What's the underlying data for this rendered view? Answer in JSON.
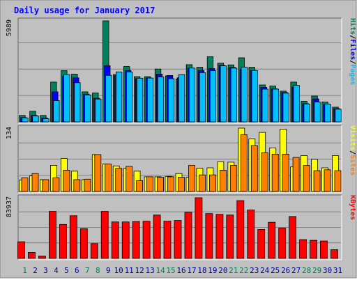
{
  "chart_data": {
    "type": "bar",
    "title": "Daily usage for January 2017",
    "days": [
      "1",
      "2",
      "3",
      "4",
      "5",
      "6",
      "7",
      "8",
      "9",
      "10",
      "11",
      "12",
      "13",
      "14",
      "15",
      "16",
      "17",
      "18",
      "19",
      "20",
      "21",
      "22",
      "23",
      "24",
      "25",
      "26",
      "27",
      "28",
      "29",
      "30",
      "31"
    ],
    "weekend_days": [
      "1",
      "7",
      "8",
      "14",
      "15",
      "21",
      "22",
      "28",
      "29"
    ],
    "colors": {
      "hits": "#00805c",
      "files": "#0000ff",
      "pages": "#00c0ff",
      "visits": "#ffff00",
      "sites": "#ff8000",
      "kbytes": "#ff0000",
      "weekday_label": "#0000a0",
      "weekend_label": "#00805c",
      "title": "#0000ff",
      "plot_bg": "#c0c0c0",
      "frame_bg": "#c0c0c0"
    },
    "panels": [
      {
        "name": "hits-files-pages",
        "ymax_label": "5989",
        "ymax": 5989,
        "legend": [
          {
            "text": "Pages",
            "color_key": "pages"
          },
          {
            "text": "/",
            "color_key": "sep"
          },
          {
            "text": "Files",
            "color_key": "files"
          },
          {
            "text": "/",
            "color_key": "sep"
          },
          {
            "text": "Hits",
            "color_key": "hits"
          }
        ],
        "series": [
          {
            "name": "Hits",
            "color_key": "hits",
            "values": [
              380,
              630,
              380,
              2360,
              3040,
              2830,
              1780,
              1720,
              5989,
              2800,
              3280,
              2680,
              2680,
              3130,
              2720,
              2550,
              3390,
              3240,
              3860,
              3480,
              3380,
              3800,
              3240,
              2190,
              2130,
              1820,
              2360,
              1220,
              1530,
              1180,
              870
            ]
          },
          {
            "name": "Files",
            "color_key": "files",
            "values": [
              250,
              380,
              230,
              1780,
              2720,
              2610,
              1640,
              1400,
              3330,
              2790,
              3050,
              2560,
              2600,
              2830,
              2750,
              2620,
              3190,
              3050,
              3160,
              3360,
              3230,
              3100,
              3050,
              2050,
              1960,
              1740,
              2060,
              1080,
              1360,
              1040,
              780
            ]
          },
          {
            "name": "Pages",
            "color_key": "pages",
            "values": [
              230,
              350,
              190,
              1260,
              2810,
              2320,
              1600,
              1350,
              2760,
              2960,
              2960,
              2590,
              2600,
              2670,
              2560,
              2810,
              3190,
              2920,
              3030,
              3330,
              3190,
              3250,
              3040,
              1940,
              1940,
              1700,
              2160,
              1060,
              1180,
              1050,
              750
            ]
          }
        ]
      },
      {
        "name": "visits-sites",
        "ymax_label": "134",
        "ymax": 134,
        "legend": [
          {
            "text": "Sites",
            "color_key": "sites"
          },
          {
            "text": "/",
            "color_key": "sep"
          },
          {
            "text": "Visits",
            "color_key": "visits"
          }
        ],
        "series": [
          {
            "name": "Visits",
            "color_key": "visits",
            "values": [
              24,
              33,
              25,
              55,
              70,
              43,
              25,
              78,
              58,
              54,
              49,
              43,
              31,
              31,
              32,
              38,
              30,
              49,
              50,
              63,
              62,
              134,
              111,
              125,
              92,
              132,
              52,
              76,
              68,
              50,
              76
            ]
          },
          {
            "name": "Sites",
            "color_key": "sites",
            "values": [
              29,
              38,
              25,
              29,
              45,
              25,
              26,
              78,
              58,
              49,
              53,
              23,
              31,
              30,
              31,
              30,
              55,
              35,
              35,
              45,
              55,
              120,
              97,
              82,
              79,
              79,
              72,
              55,
              44,
              46,
              44
            ]
          }
        ]
      },
      {
        "name": "kbytes",
        "ymax_label": "83937",
        "ymax": 83937,
        "legend": [
          {
            "text": "KBytes",
            "color_key": "kbytes"
          }
        ],
        "series": [
          {
            "name": "KBytes",
            "color_key": "kbytes",
            "values": [
              23000,
              8200,
              3000,
              65000,
              47000,
              59000,
              41000,
              20500,
              65000,
              50500,
              50500,
              51000,
              51500,
              60000,
              51500,
              52500,
              64000,
              83937,
              62000,
              61000,
              60000,
              80000,
              67000,
              40000,
              50000,
              42000,
              58000,
              26000,
              25000,
              24000,
              12000
            ]
          }
        ]
      }
    ]
  }
}
